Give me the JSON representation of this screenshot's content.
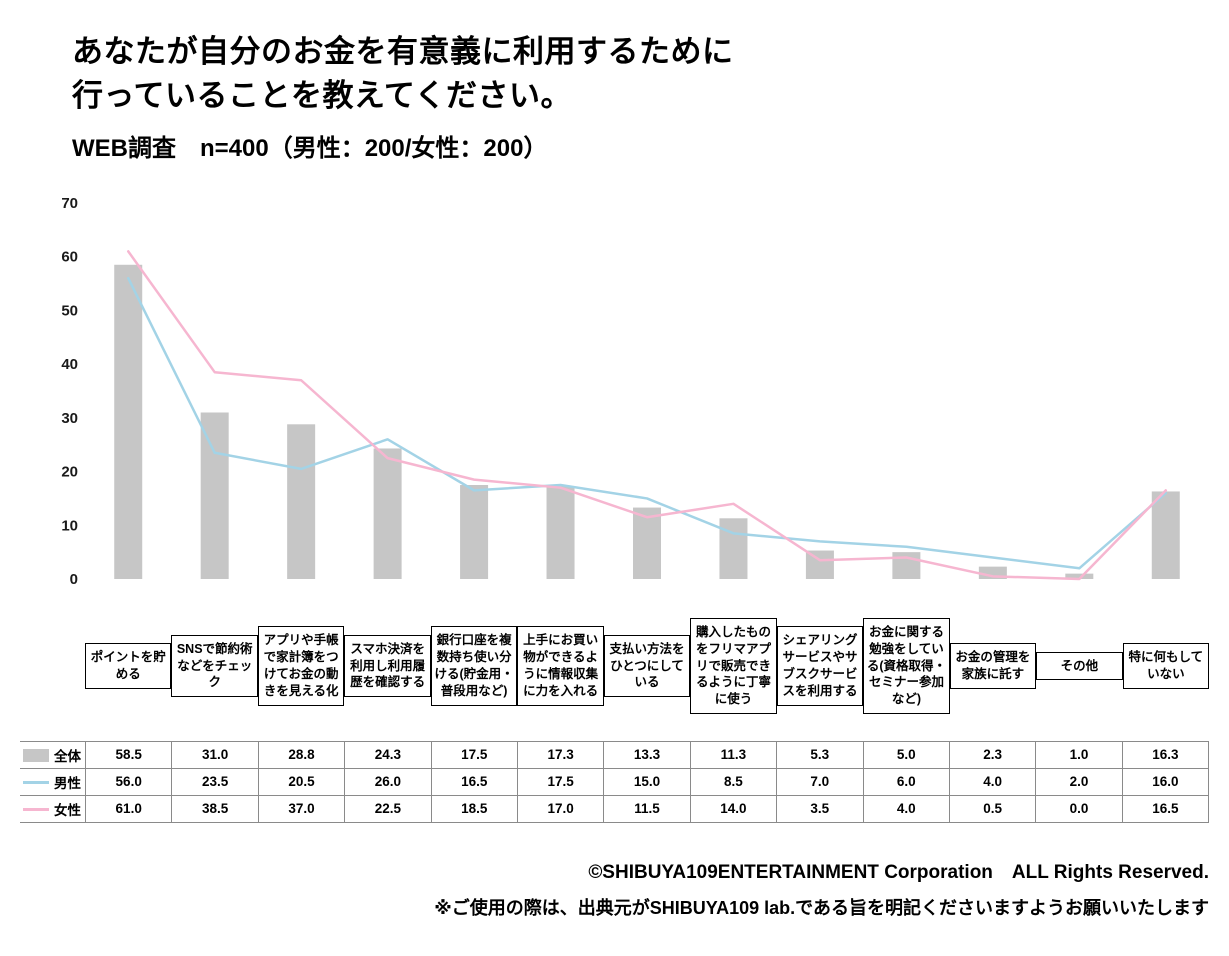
{
  "header": {
    "title_line1": "あなたが自分のお金を有意義に利用するために",
    "title_line2": "行っていることを教えてください。",
    "subtitle": "WEB調査　n=400（男性：200/女性：200）"
  },
  "chart_data": {
    "type": "bar+line",
    "title": "あなたが自分のお金を有意義に利用するために行っていることを教えてください。",
    "subtitle": "WEB調査 n=400（男性：200/女性：200）",
    "categories": [
      "ポイントを貯める",
      "SNSで節約術などをチェック",
      "アプリや手帳で家計簿をつけてお金の動きを見える化",
      "スマホ決済を利用し利用履歴を確認する",
      "銀行口座を複数持ち使い分ける(貯金用・普段用など)",
      "上手にお買い物ができるように情報収集に力を入れる",
      "支払い方法をひとつにしている",
      "購入したものをフリマアプリで販売できるように丁寧に使う",
      "シェアリングサービスやサブスクサービスを利用する",
      "お金に関する勉強をしている(資格取得・セミナー参加など)",
      "お金の管理を家族に託す",
      "その他",
      "特に何もしていない"
    ],
    "series": [
      {
        "key": "overall",
        "name": "全体",
        "type": "bar",
        "color": "#c6c6c6",
        "values": [
          58.5,
          31.0,
          28.8,
          24.3,
          17.5,
          17.3,
          13.3,
          11.3,
          5.3,
          5.0,
          2.3,
          1.0,
          16.3
        ]
      },
      {
        "key": "male",
        "name": "男性",
        "type": "line",
        "color": "#a3d3e6",
        "values": [
          56.0,
          23.5,
          20.5,
          26.0,
          16.5,
          17.5,
          15.0,
          8.5,
          7.0,
          6.0,
          4.0,
          2.0,
          16.0
        ]
      },
      {
        "key": "female",
        "name": "女性",
        "type": "line",
        "color": "#f6b6d0",
        "values": [
          61.0,
          38.5,
          37.0,
          22.5,
          18.5,
          17.0,
          11.5,
          14.0,
          3.5,
          4.0,
          0.5,
          0.0,
          16.5
        ]
      }
    ],
    "ylim": [
      0,
      70
    ],
    "yticks": [
      0,
      10,
      20,
      30,
      40,
      50,
      60,
      70
    ],
    "grid": false,
    "legend_position": "table-left"
  },
  "footer": {
    "copyright": "©SHIBUYA109ENTERTAINMENT Corporation　ALL Rights Reserved.",
    "note": "※ご使用の際は、出典元がSHIBUYA109 lab.である旨を明記くださいますようお願いいたします"
  }
}
